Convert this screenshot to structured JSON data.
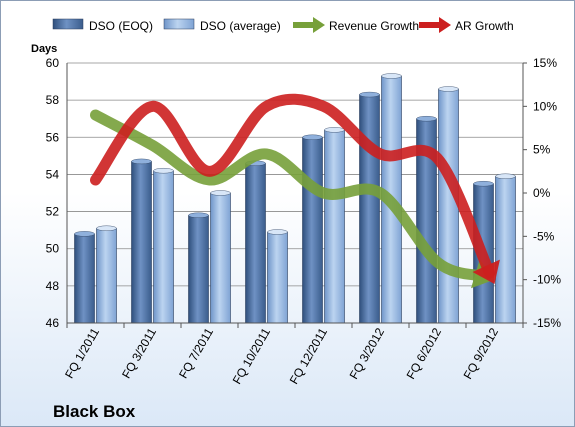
{
  "chart_data": {
    "type": "bar",
    "title": "Black Box",
    "ylabel": "Days",
    "categories": [
      "FQ 1/2011",
      "FQ 3/2011",
      "FQ 7/2011",
      "FQ 10/2011",
      "FQ 12/2011",
      "FQ 3/2012",
      "FQ 6/2012",
      "FQ 9/2012"
    ],
    "ylim": [
      46,
      60
    ],
    "y_ticks": [
      "46",
      "48",
      "50",
      "52",
      "54",
      "56",
      "58",
      "60"
    ],
    "y2lim": [
      -15,
      15
    ],
    "y2_ticks": [
      "-15%",
      "-10%",
      "-5%",
      "0%",
      "5%",
      "10%",
      "15%"
    ],
    "grid": true,
    "legend_position": "top",
    "series": [
      {
        "name": "DSO (EOQ)",
        "kind": "bar",
        "axis": "left",
        "color": "#4a6fa5",
        "values": [
          50.8,
          54.7,
          51.8,
          54.6,
          56.0,
          58.3,
          57.0,
          53.5
        ]
      },
      {
        "name": "DSO (average)",
        "kind": "bar",
        "axis": "left",
        "color": "#8db3e2",
        "values": [
          51.1,
          54.2,
          53.0,
          50.9,
          56.4,
          59.3,
          58.6,
          53.9
        ]
      },
      {
        "name": "Revenue Growth",
        "kind": "line",
        "axis": "right",
        "color": "#77a03a",
        "values": [
          9.0,
          5.5,
          1.5,
          4.5,
          0.0,
          0.0,
          -8.0,
          -10.0
        ]
      },
      {
        "name": "AR Growth",
        "kind": "line",
        "axis": "right",
        "color": "#cc1f1f",
        "values": [
          1.5,
          10.0,
          2.5,
          10.0,
          10.0,
          4.5,
          4.0,
          -10.5
        ]
      }
    ]
  }
}
